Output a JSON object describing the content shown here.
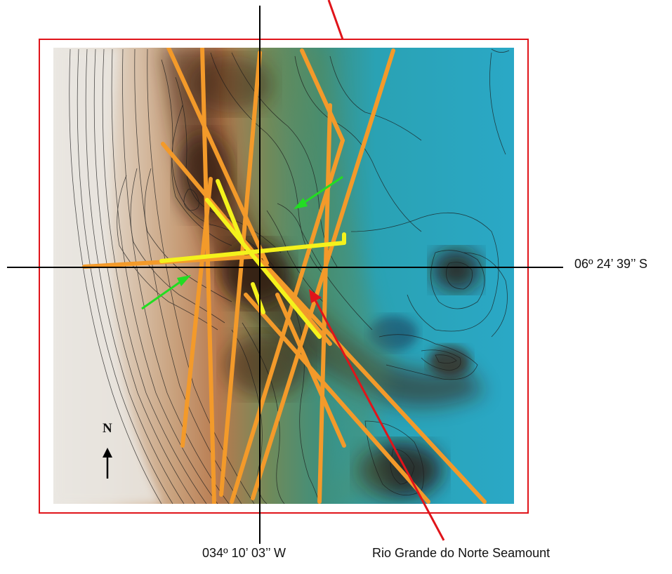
{
  "labels": {
    "latitude": "06º 24’ 39’’ S",
    "longitude": "034º 10’ 03’’ W",
    "feature": "Rio Grande do Norte Seamount",
    "north": "N"
  },
  "colors": {
    "frame": "#e0141a",
    "arrow_red": "#e0141a",
    "arrow_green": "#22dd22",
    "track_orange": "#f39a2a",
    "track_yellow": "#f4f21c",
    "crosshair": "#000000",
    "sea_deep": "#2aa5c0",
    "shelf_light": "#e9e4dc"
  },
  "icons": [
    "north-arrow-icon",
    "red-arrow-icon",
    "green-arrow-icon"
  ]
}
